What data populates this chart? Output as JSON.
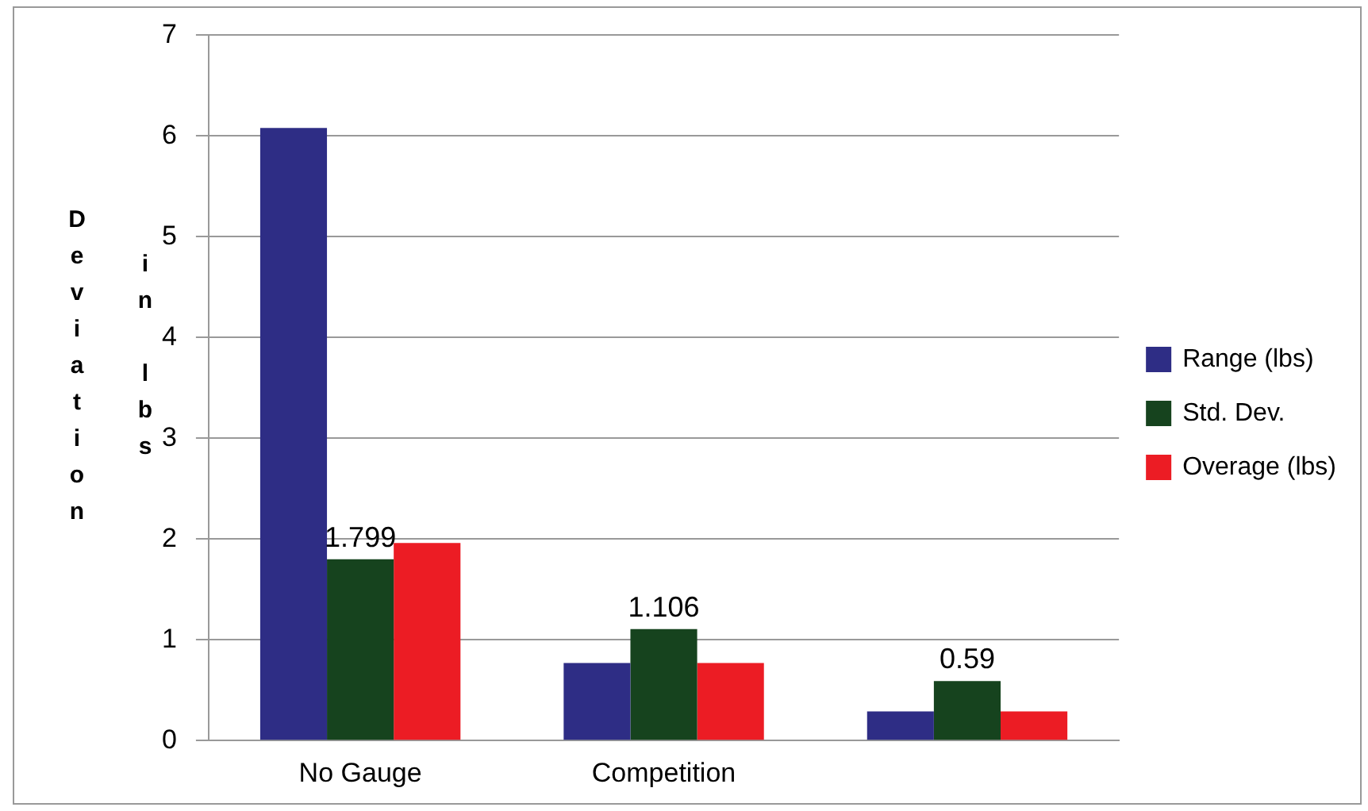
{
  "chart_data": {
    "type": "bar",
    "ylabel": "Deviation in lbs",
    "categories": [
      "No Gauge",
      "Competition",
      null
    ],
    "series": [
      {
        "name": "Range (lbs)",
        "color": "#2e2d85",
        "values": [
          6.08,
          0.77,
          0.29
        ]
      },
      {
        "name": "Std. Dev.",
        "color": "#16431e",
        "values": [
          1.799,
          1.106,
          0.59
        ],
        "value_labels": [
          "1.799",
          "1.106",
          "0.59"
        ]
      },
      {
        "name": "Overage (lbs)",
        "color": "#ec1c24",
        "values": [
          1.96,
          0.77,
          0.29
        ]
      }
    ],
    "ylim": [
      0,
      7
    ],
    "yticks": [
      0,
      1,
      2,
      3,
      4,
      5,
      6,
      7
    ],
    "grid": "y",
    "legend": "right"
  }
}
